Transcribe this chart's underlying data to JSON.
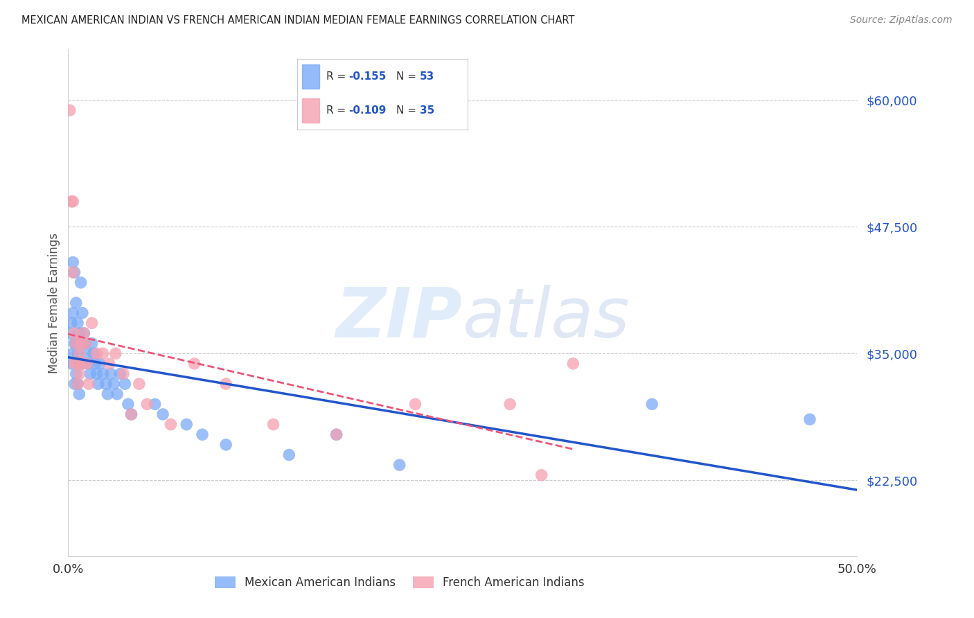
{
  "title": "MEXICAN AMERICAN INDIAN VS FRENCH AMERICAN INDIAN MEDIAN FEMALE EARNINGS CORRELATION CHART",
  "source": "Source: ZipAtlas.com",
  "ylabel": "Median Female Earnings",
  "xlim": [
    0.0,
    0.5
  ],
  "ylim": [
    15000,
    65000
  ],
  "yticks": [
    22500,
    35000,
    47500,
    60000
  ],
  "ytick_labels": [
    "$22,500",
    "$35,000",
    "$47,500",
    "$60,000"
  ],
  "xtick_labels": [
    "0.0%",
    "",
    "",
    "",
    "",
    "50.0%"
  ],
  "blue_color": "#7baaf7",
  "pink_color": "#f5a0b0",
  "trendline_blue": "#2255cc",
  "trendline_pink": "#ee5577",
  "legend_R_blue": "-0.155",
  "legend_N_blue": "53",
  "legend_R_pink": "-0.109",
  "legend_N_pink": "35",
  "legend_label_blue": "Mexican American Indians",
  "legend_label_pink": "French American Indians",
  "blue_x": [
    0.001,
    0.002,
    0.002,
    0.003,
    0.003,
    0.003,
    0.004,
    0.004,
    0.004,
    0.005,
    0.005,
    0.005,
    0.006,
    0.006,
    0.006,
    0.007,
    0.007,
    0.007,
    0.008,
    0.008,
    0.009,
    0.009,
    0.01,
    0.011,
    0.012,
    0.013,
    0.014,
    0.015,
    0.016,
    0.017,
    0.018,
    0.019,
    0.02,
    0.022,
    0.024,
    0.025,
    0.027,
    0.029,
    0.031,
    0.033,
    0.036,
    0.038,
    0.04,
    0.055,
    0.06,
    0.075,
    0.085,
    0.1,
    0.14,
    0.17,
    0.21,
    0.37,
    0.47
  ],
  "blue_y": [
    37000,
    38000,
    34000,
    44000,
    39000,
    35000,
    43000,
    36000,
    32000,
    40000,
    36000,
    33000,
    38000,
    35000,
    32000,
    37000,
    34000,
    31000,
    42000,
    36000,
    39000,
    34000,
    37000,
    36000,
    35000,
    34000,
    33000,
    36000,
    35000,
    34000,
    33000,
    32000,
    34000,
    33000,
    32000,
    31000,
    33000,
    32000,
    31000,
    33000,
    32000,
    30000,
    29000,
    30000,
    29000,
    28000,
    27000,
    26000,
    25000,
    27000,
    24000,
    30000,
    28500
  ],
  "pink_x": [
    0.001,
    0.002,
    0.003,
    0.003,
    0.004,
    0.004,
    0.005,
    0.006,
    0.006,
    0.007,
    0.007,
    0.008,
    0.009,
    0.01,
    0.011,
    0.012,
    0.013,
    0.015,
    0.018,
    0.022,
    0.026,
    0.03,
    0.035,
    0.04,
    0.045,
    0.05,
    0.065,
    0.08,
    0.1,
    0.13,
    0.17,
    0.22,
    0.28,
    0.3,
    0.32
  ],
  "pink_y": [
    59000,
    50000,
    50000,
    43000,
    37000,
    34000,
    36000,
    34000,
    32000,
    35000,
    33000,
    36000,
    34000,
    37000,
    36000,
    34000,
    32000,
    38000,
    35000,
    35000,
    34000,
    35000,
    33000,
    29000,
    32000,
    30000,
    28000,
    34000,
    32000,
    28000,
    27000,
    30000,
    30000,
    23000,
    34000
  ]
}
